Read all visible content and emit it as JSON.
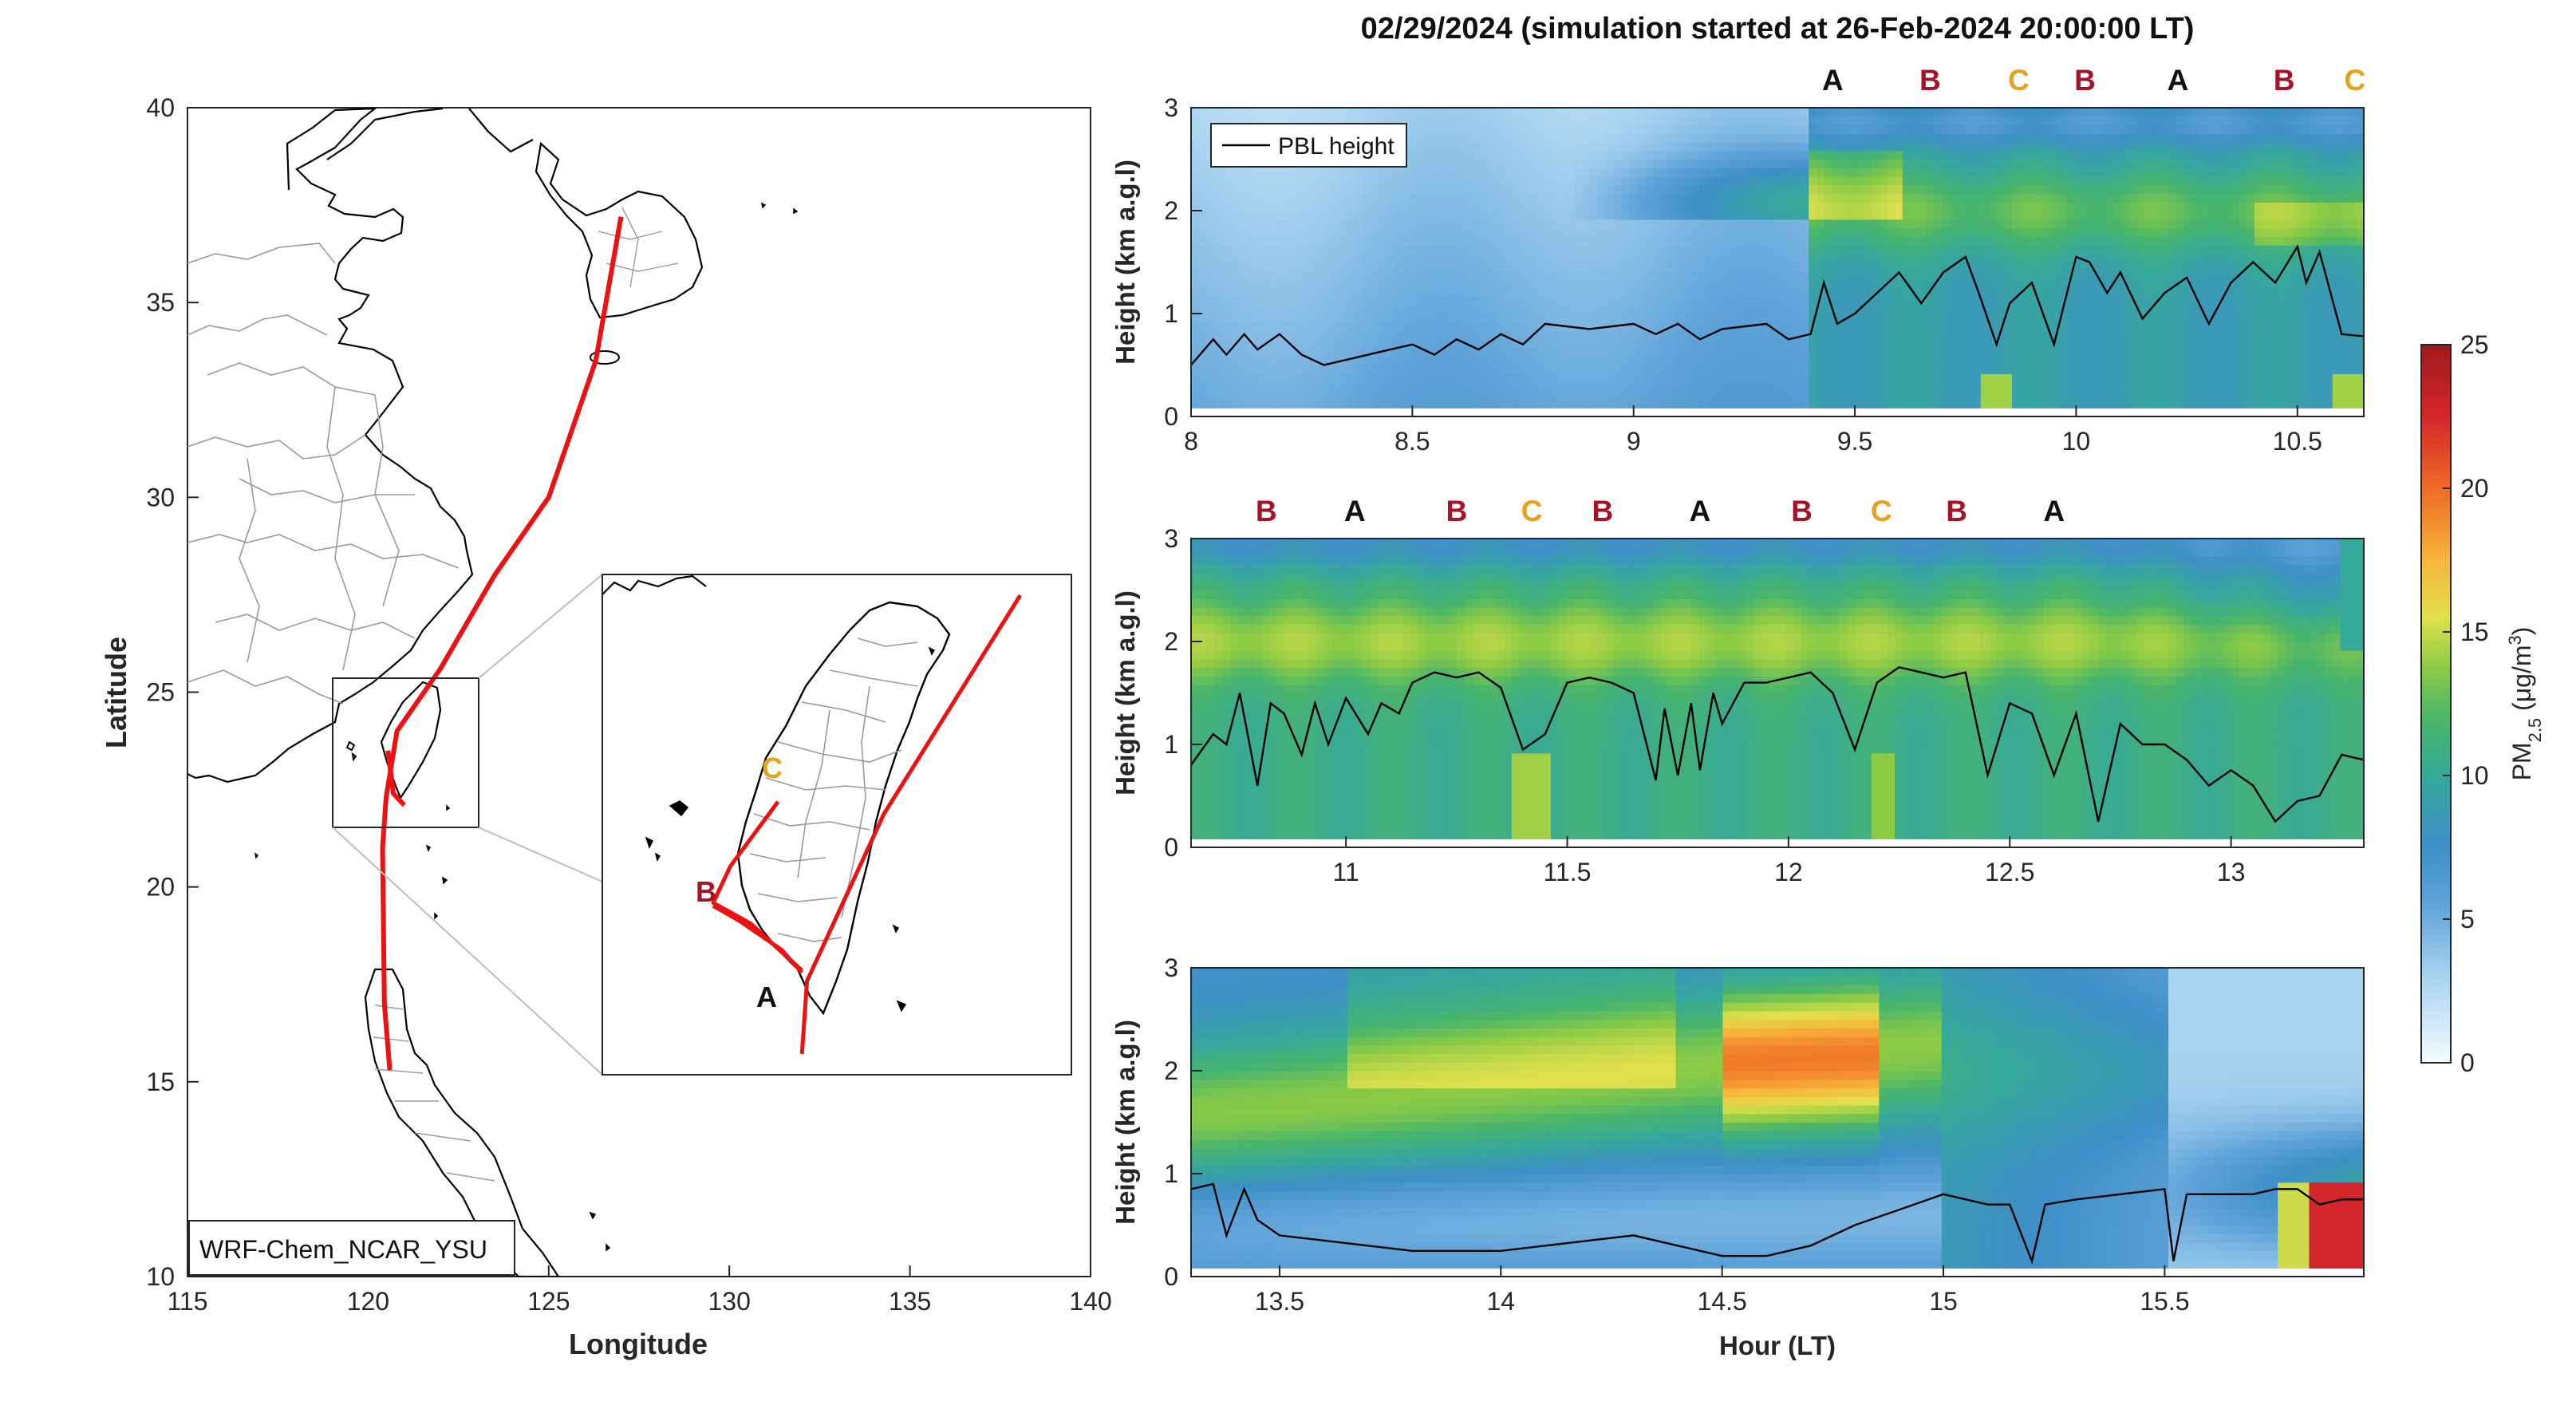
{
  "figure_title": "02/29/2024 (simulation started at 26-Feb-2024 20:00:00 LT)",
  "colors": {
    "route": "#ee1111",
    "label_A": "#111111",
    "label_B": "#a31427",
    "label_C": "#e8a21a"
  },
  "map": {
    "xlabel": "Longitude",
    "ylabel": "Latitude",
    "xticks": [
      "115",
      "120",
      "125",
      "130",
      "135",
      "140"
    ],
    "yticks": [
      "10",
      "15",
      "20",
      "25",
      "30",
      "35",
      "40"
    ],
    "xlim": [
      115,
      140
    ],
    "ylim": [
      10,
      40
    ],
    "model_label": "WRF-Chem_NCAR_YSU",
    "route": [
      [
        127.0,
        37.2
      ],
      [
        126.3,
        33.5
      ],
      [
        125.0,
        30.0
      ],
      [
        123.5,
        28.0
      ],
      [
        122.0,
        25.6
      ],
      [
        120.8,
        24.0
      ],
      [
        120.5,
        22.3
      ],
      [
        120.4,
        21.0
      ],
      [
        120.45,
        17.0
      ],
      [
        120.6,
        15.3
      ]
    ],
    "route_taiwan_lower": [
      [
        120.55,
        23.5
      ],
      [
        120.7,
        22.4
      ],
      [
        121.0,
        22.1
      ]
    ],
    "inset": {
      "labels": {
        "A": "A",
        "B": "B",
        "C": "C"
      },
      "tracks": {
        "main": [
          [
            122.0,
            25.6
          ],
          [
            121.2,
            23.5
          ],
          [
            120.75,
            21.9
          ],
          [
            120.72,
            21.2
          ]
        ],
        "c_track": [
          [
            120.58,
            23.62
          ],
          [
            120.3,
            23.0
          ],
          [
            120.2,
            22.65
          ],
          [
            120.42,
            22.45
          ],
          [
            120.72,
            22.0
          ]
        ],
        "branch1": [
          [
            120.2,
            22.65
          ],
          [
            120.6,
            22.2
          ],
          [
            120.72,
            21.98
          ]
        ],
        "branch2": [
          [
            120.2,
            22.62
          ],
          [
            120.48,
            22.36
          ]
        ]
      }
    }
  },
  "colorbar": {
    "label": "PM2.5 (μg/m3)",
    "ticks": [
      "0",
      "5",
      "10",
      "15",
      "20",
      "25"
    ],
    "range": [
      0,
      25
    ]
  },
  "chart_data": [
    {
      "type": "heatmap",
      "xlabel": "",
      "ylabel": "Height (km a.g.l)",
      "xlim": [
        8,
        10.65
      ],
      "ylim": [
        0,
        3
      ],
      "xticks": [
        "8",
        "8.5",
        "9",
        "9.5",
        "10",
        "10.5"
      ],
      "yticks": [
        "0",
        "1",
        "2",
        "3"
      ],
      "legend": {
        "entry": "PBL height",
        "placement": "top-left"
      },
      "markers": [
        {
          "x": 9.45,
          "label": "A"
        },
        {
          "x": 9.67,
          "label": "B"
        },
        {
          "x": 9.87,
          "label": "C"
        },
        {
          "x": 10.02,
          "label": "B"
        },
        {
          "x": 10.23,
          "label": "A"
        },
        {
          "x": 10.47,
          "label": "B"
        },
        {
          "x": 10.63,
          "label": "C"
        }
      ],
      "pbl_height": {
        "x": [
          8,
          8.05,
          8.08,
          8.12,
          8.15,
          8.2,
          8.25,
          8.3,
          8.35,
          8.4,
          8.45,
          8.5,
          8.55,
          8.6,
          8.65,
          8.7,
          8.75,
          8.8,
          8.9,
          9.0,
          9.05,
          9.1,
          9.15,
          9.2,
          9.3,
          9.35,
          9.4,
          9.43,
          9.46,
          9.5,
          9.55,
          9.6,
          9.65,
          9.7,
          9.75,
          9.78,
          9.82,
          9.85,
          9.9,
          9.95,
          10.0,
          10.03,
          10.07,
          10.1,
          10.15,
          10.2,
          10.25,
          10.3,
          10.35,
          10.4,
          10.45,
          10.5,
          10.52,
          10.55,
          10.6,
          10.65
        ],
        "y": [
          0.5,
          0.75,
          0.6,
          0.8,
          0.65,
          0.8,
          0.6,
          0.5,
          0.55,
          0.6,
          0.65,
          0.7,
          0.6,
          0.75,
          0.65,
          0.8,
          0.7,
          0.9,
          0.85,
          0.9,
          0.8,
          0.9,
          0.75,
          0.85,
          0.9,
          0.75,
          0.8,
          1.3,
          0.9,
          1.0,
          1.2,
          1.4,
          1.1,
          1.4,
          1.55,
          1.2,
          0.7,
          1.1,
          1.3,
          0.7,
          1.55,
          1.5,
          1.2,
          1.4,
          0.95,
          1.2,
          1.35,
          0.9,
          1.3,
          1.5,
          1.3,
          1.65,
          1.3,
          1.6,
          0.8,
          0.78
        ]
      }
    },
    {
      "type": "heatmap",
      "xlabel": "",
      "ylabel": "Height (km a.g.l)",
      "xlim": [
        10.65,
        13.3
      ],
      "ylim": [
        0,
        3
      ],
      "xticks": [
        "11",
        "11.5",
        "12",
        "12.5",
        "13"
      ],
      "yticks": [
        "0",
        "1",
        "2",
        "3"
      ],
      "markers": [
        {
          "x": 10.82,
          "label": "B"
        },
        {
          "x": 11.02,
          "label": "A"
        },
        {
          "x": 11.25,
          "label": "B"
        },
        {
          "x": 11.42,
          "label": "C"
        },
        {
          "x": 11.58,
          "label": "B"
        },
        {
          "x": 11.8,
          "label": "A"
        },
        {
          "x": 12.03,
          "label": "B"
        },
        {
          "x": 12.21,
          "label": "C"
        },
        {
          "x": 12.38,
          "label": "B"
        },
        {
          "x": 12.6,
          "label": "A"
        }
      ],
      "pbl_height": {
        "x": [
          10.65,
          10.7,
          10.73,
          10.76,
          10.8,
          10.83,
          10.86,
          10.9,
          10.93,
          10.96,
          11.0,
          11.05,
          11.08,
          11.12,
          11.15,
          11.2,
          11.25,
          11.3,
          11.35,
          11.4,
          11.45,
          11.5,
          11.55,
          11.6,
          11.65,
          11.7,
          11.72,
          11.75,
          11.78,
          11.8,
          11.83,
          11.85,
          11.9,
          11.95,
          12.0,
          12.05,
          12.1,
          12.15,
          12.2,
          12.25,
          12.3,
          12.35,
          12.4,
          12.45,
          12.5,
          12.55,
          12.6,
          12.65,
          12.7,
          12.75,
          12.8,
          12.85,
          12.9,
          12.95,
          13.0,
          13.05,
          13.1,
          13.15,
          13.2,
          13.25,
          13.3
        ],
        "y": [
          0.8,
          1.1,
          1.0,
          1.5,
          0.6,
          1.4,
          1.3,
          0.9,
          1.4,
          1.0,
          1.45,
          1.1,
          1.4,
          1.3,
          1.6,
          1.7,
          1.65,
          1.7,
          1.55,
          0.95,
          1.1,
          1.6,
          1.65,
          1.6,
          1.5,
          0.65,
          1.35,
          0.7,
          1.4,
          0.75,
          1.5,
          1.2,
          1.6,
          1.6,
          1.65,
          1.7,
          1.5,
          0.95,
          1.6,
          1.75,
          1.7,
          1.65,
          1.7,
          0.7,
          1.4,
          1.3,
          0.7,
          1.3,
          0.25,
          1.2,
          1.0,
          1.0,
          0.85,
          0.6,
          0.75,
          0.6,
          0.25,
          0.45,
          0.5,
          0.9,
          0.85
        ]
      }
    },
    {
      "type": "heatmap",
      "xlabel": "Hour (LT)",
      "ylabel": "Height (km a.g.l)",
      "xlim": [
        13.3,
        15.95
      ],
      "ylim": [
        0,
        3
      ],
      "xticks": [
        "13.5",
        "14",
        "14.5",
        "15",
        "15.5"
      ],
      "yticks": [
        "0",
        "1",
        "2",
        "3"
      ],
      "markers": [],
      "pbl_height": {
        "x": [
          13.3,
          13.35,
          13.38,
          13.42,
          13.45,
          13.5,
          13.6,
          13.7,
          13.8,
          13.9,
          14.0,
          14.1,
          14.2,
          14.3,
          14.4,
          14.5,
          14.6,
          14.7,
          14.8,
          14.9,
          15.0,
          15.1,
          15.15,
          15.2,
          15.23,
          15.3,
          15.4,
          15.5,
          15.52,
          15.55,
          15.6,
          15.7,
          15.75,
          15.8,
          15.85,
          15.9,
          15.95
        ],
        "y": [
          0.85,
          0.9,
          0.4,
          0.85,
          0.55,
          0.4,
          0.35,
          0.3,
          0.25,
          0.25,
          0.25,
          0.3,
          0.35,
          0.4,
          0.3,
          0.2,
          0.2,
          0.3,
          0.5,
          0.65,
          0.8,
          0.7,
          0.7,
          0.15,
          0.7,
          0.75,
          0.8,
          0.85,
          0.15,
          0.8,
          0.8,
          0.8,
          0.85,
          0.85,
          0.7,
          0.75,
          0.75
        ]
      }
    }
  ]
}
